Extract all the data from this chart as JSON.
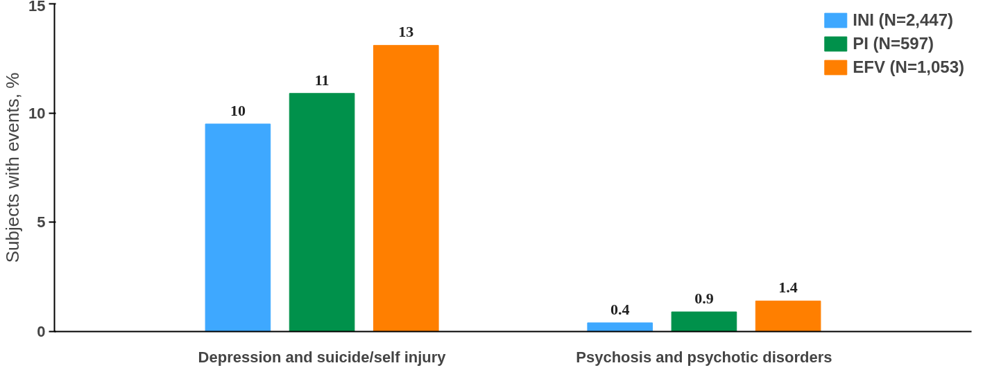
{
  "chart_data": {
    "type": "bar",
    "ylabel": "Subjects with events, %",
    "categories": [
      "Depression and suicide/self injury",
      "Psychosis and psychotic disorders"
    ],
    "series": [
      {
        "name": "INI (N=2,447)",
        "color": "#3ea8ff",
        "values": [
          9.5,
          0.4
        ],
        "value_labels": [
          "10",
          "0.4"
        ]
      },
      {
        "name": "PI (N=597)",
        "color": "#00914b",
        "values": [
          10.9,
          0.9
        ],
        "value_labels": [
          "11",
          "0.9"
        ]
      },
      {
        "name": "EFV (N=1,053)",
        "color": "#ff7f00",
        "values": [
          13.1,
          1.4
        ],
        "value_labels": [
          "13",
          "1.4"
        ]
      }
    ],
    "ylim": [
      0,
      15
    ],
    "yticks": [
      0,
      5,
      10,
      15
    ],
    "grid": false,
    "legend": "top right"
  }
}
